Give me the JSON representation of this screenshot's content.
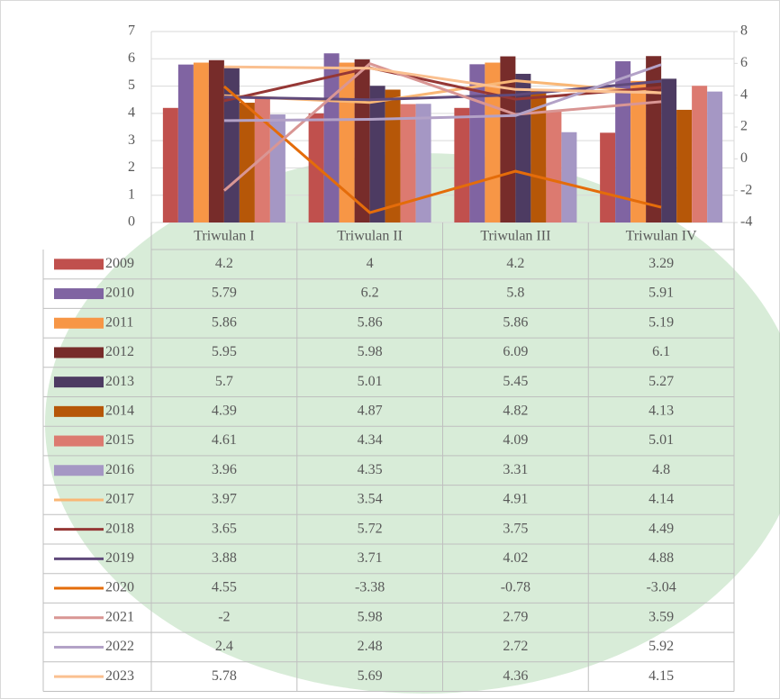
{
  "chart_data": {
    "type": "bar",
    "categories": [
      "Triwulan I",
      "Triwulan II",
      "Triwulan III",
      "Triwulan IV"
    ],
    "ylim": [
      0,
      7
    ],
    "yticks": [
      0,
      1,
      2,
      3,
      4,
      5,
      6,
      7
    ],
    "y2lim": [
      -4,
      8
    ],
    "y2ticks": [
      -4,
      -2,
      0,
      2,
      4,
      6,
      8
    ],
    "series": [
      {
        "name": "2009",
        "type": "bar",
        "color": "#c0504d",
        "values": [
          4.2,
          4,
          4.2,
          3.29
        ]
      },
      {
        "name": "2010",
        "type": "bar",
        "color": "#8064a2",
        "values": [
          5.79,
          6.2,
          5.8,
          5.91
        ]
      },
      {
        "name": "2011",
        "type": "bar",
        "color": "#f79646",
        "values": [
          5.86,
          5.86,
          5.86,
          5.19
        ]
      },
      {
        "name": "2012",
        "type": "bar",
        "color": "#772c2a",
        "values": [
          5.95,
          5.98,
          6.09,
          6.1
        ]
      },
      {
        "name": "2013",
        "type": "bar",
        "color": "#4d3b62",
        "values": [
          5.7,
          5.01,
          5.45,
          5.27
        ]
      },
      {
        "name": "2014",
        "type": "bar",
        "color": "#b65708",
        "values": [
          4.39,
          4.87,
          4.82,
          4.13
        ]
      },
      {
        "name": "2015",
        "type": "bar",
        "color": "#dc7a70",
        "values": [
          4.61,
          4.34,
          4.09,
          5.01
        ]
      },
      {
        "name": "2016",
        "type": "bar",
        "color": "#a597c4",
        "values": [
          3.96,
          4.35,
          3.31,
          4.8
        ]
      },
      {
        "name": "2017",
        "type": "line",
        "axis": "y2",
        "color": "#f9b776",
        "values": [
          3.97,
          3.54,
          4.91,
          4.14
        ]
      },
      {
        "name": "2018",
        "type": "line",
        "axis": "y2",
        "color": "#953735",
        "values": [
          3.65,
          5.72,
          3.75,
          4.49
        ]
      },
      {
        "name": "2019",
        "type": "line",
        "axis": "y2",
        "color": "#604a7b",
        "values": [
          3.88,
          3.71,
          4.02,
          4.88
        ]
      },
      {
        "name": "2020",
        "type": "line",
        "axis": "y2",
        "color": "#e46c0a",
        "values": [
          4.55,
          -3.38,
          -0.78,
          -3.04
        ]
      },
      {
        "name": "2021",
        "type": "line",
        "axis": "y2",
        "color": "#d99694",
        "values": [
          -2,
          5.98,
          2.79,
          3.59
        ]
      },
      {
        "name": "2022",
        "type": "line",
        "axis": "y2",
        "color": "#b3a2c7",
        "values": [
          2.4,
          2.48,
          2.72,
          5.92
        ]
      },
      {
        "name": "2023",
        "type": "line",
        "axis": "y2",
        "color": "#fac090",
        "values": [
          5.78,
          5.69,
          4.36,
          4.15
        ]
      }
    ]
  }
}
